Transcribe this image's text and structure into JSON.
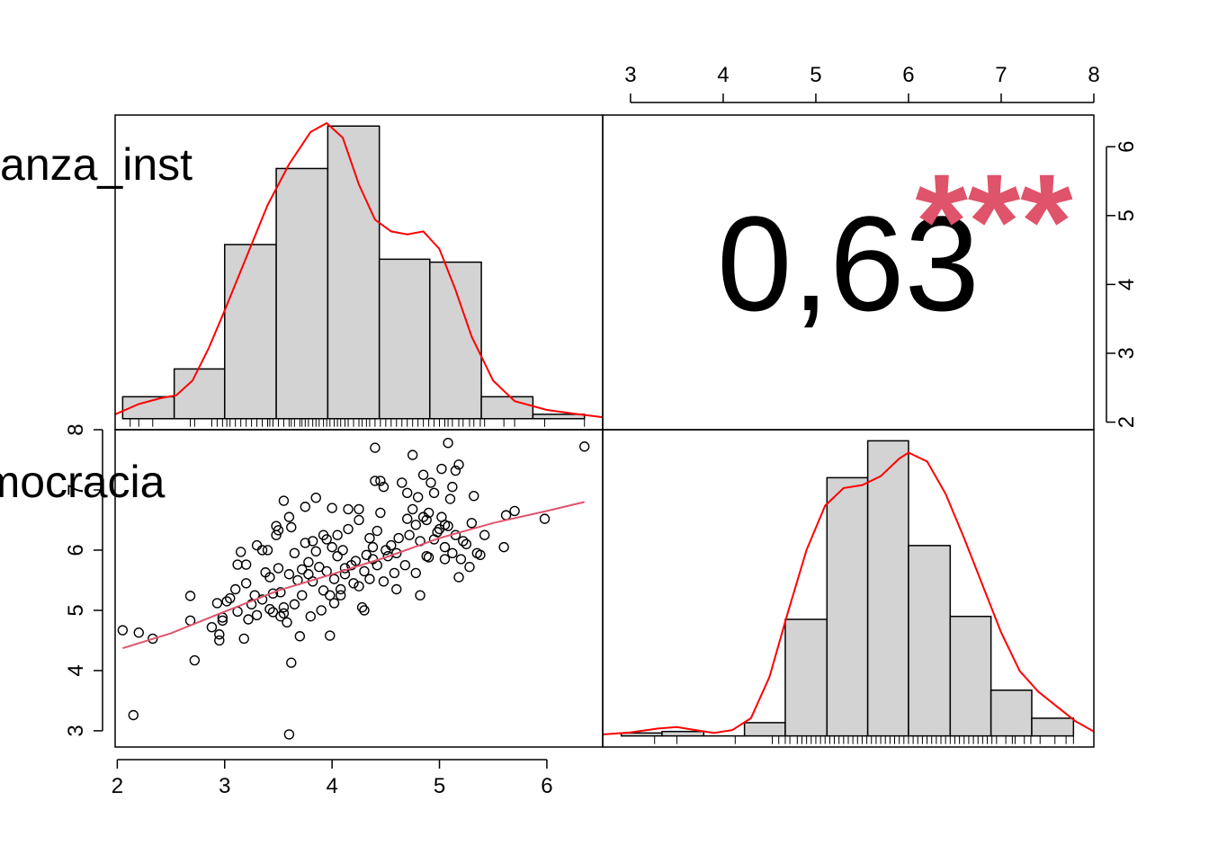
{
  "chart_data": {
    "type": "scatter",
    "variables": [
      "sub_confianza_inst",
      "sub_democracia"
    ],
    "correlation": {
      "value_label": "0,63",
      "stars": "***",
      "color": "#DF536B"
    },
    "colors": {
      "hist_fill": "#D3D3D3",
      "density": "#FF0000",
      "fit_line": "#DF536B",
      "points": "#000000"
    },
    "axes": {
      "x1": {
        "range": [
          1.98,
          6.52
        ],
        "ticks": [
          2,
          3,
          4,
          5,
          6
        ],
        "tick_labels": [
          "2",
          "3",
          "4",
          "5",
          "6"
        ],
        "position": "bottom"
      },
      "x2": {
        "range": [
          2.7,
          8.0
        ],
        "ticks": [
          3,
          4,
          5,
          6,
          7,
          8
        ],
        "tick_labels": [
          "3",
          "4",
          "5",
          "6",
          "7",
          "8"
        ],
        "position": "top"
      },
      "y1": {
        "range": [
          1.89,
          6.46
        ],
        "ticks": [
          2,
          3,
          4,
          5,
          6
        ],
        "tick_labels": [
          "2",
          "3",
          "4",
          "5",
          "6"
        ],
        "position": "right"
      },
      "y2": {
        "range": [
          2.73,
          8.0
        ],
        "ticks": [
          3,
          4,
          5,
          6,
          7,
          8
        ],
        "tick_labels": [
          "3",
          "4",
          "5",
          "6",
          "7",
          "8"
        ],
        "position": "left"
      }
    },
    "hist_confianza": {
      "breaks": [
        2.05,
        2.53,
        3.0,
        3.48,
        3.96,
        4.44,
        4.91,
        5.39,
        5.87,
        6.35
      ],
      "heights": [
        0.075,
        0.17,
        0.595,
        0.855,
        1.0,
        0.545,
        0.535,
        0.075,
        0.015
      ]
    },
    "hist_democracia": {
      "breaks": [
        2.9,
        3.34,
        3.79,
        4.23,
        4.67,
        5.12,
        5.56,
        6.0,
        6.45,
        6.89,
        7.33,
        7.78
      ],
      "heights": [
        0.01,
        0.015,
        0,
        0.045,
        0.395,
        0.875,
        1.0,
        0.645,
        0.405,
        0.155,
        0.06
      ]
    },
    "density_confianza": [
      [
        1.98,
        0.015
      ],
      [
        2.2,
        0.05
      ],
      [
        2.4,
        0.07
      ],
      [
        2.55,
        0.08
      ],
      [
        2.7,
        0.13
      ],
      [
        2.85,
        0.24
      ],
      [
        3.0,
        0.37
      ],
      [
        3.2,
        0.55
      ],
      [
        3.4,
        0.73
      ],
      [
        3.6,
        0.87
      ],
      [
        3.8,
        0.98
      ],
      [
        3.95,
        1.01
      ],
      [
        4.1,
        0.96
      ],
      [
        4.25,
        0.8
      ],
      [
        4.4,
        0.68
      ],
      [
        4.55,
        0.64
      ],
      [
        4.7,
        0.63
      ],
      [
        4.85,
        0.64
      ],
      [
        5.0,
        0.58
      ],
      [
        5.15,
        0.44
      ],
      [
        5.3,
        0.28
      ],
      [
        5.5,
        0.13
      ],
      [
        5.7,
        0.06
      ],
      [
        6.0,
        0.03
      ],
      [
        6.3,
        0.015
      ],
      [
        6.52,
        0.005
      ]
    ],
    "density_democracia": [
      [
        2.7,
        0.005
      ],
      [
        3.0,
        0.012
      ],
      [
        3.3,
        0.025
      ],
      [
        3.5,
        0.03
      ],
      [
        3.7,
        0.02
      ],
      [
        3.9,
        0.01
      ],
      [
        4.1,
        0.02
      ],
      [
        4.3,
        0.06
      ],
      [
        4.5,
        0.2
      ],
      [
        4.7,
        0.42
      ],
      [
        4.9,
        0.63
      ],
      [
        5.1,
        0.78
      ],
      [
        5.3,
        0.84
      ],
      [
        5.5,
        0.85
      ],
      [
        5.7,
        0.88
      ],
      [
        5.9,
        0.94
      ],
      [
        6.0,
        0.96
      ],
      [
        6.2,
        0.93
      ],
      [
        6.4,
        0.82
      ],
      [
        6.6,
        0.67
      ],
      [
        6.8,
        0.51
      ],
      [
        7.0,
        0.35
      ],
      [
        7.2,
        0.22
      ],
      [
        7.4,
        0.15
      ],
      [
        7.6,
        0.1
      ],
      [
        7.8,
        0.05
      ],
      [
        8.0,
        0.015
      ]
    ],
    "loess_fit": [
      [
        2.05,
        4.37
      ],
      [
        2.5,
        4.62
      ],
      [
        3.0,
        4.98
      ],
      [
        3.5,
        5.33
      ],
      [
        4.0,
        5.6
      ],
      [
        4.5,
        5.88
      ],
      [
        5.0,
        6.2
      ],
      [
        5.5,
        6.45
      ],
      [
        6.0,
        6.65
      ],
      [
        6.35,
        6.8
      ]
    ],
    "points": [
      [
        2.05,
        4.67
      ],
      [
        2.15,
        3.26
      ],
      [
        2.2,
        4.63
      ],
      [
        2.33,
        4.53
      ],
      [
        2.68,
        5.24
      ],
      [
        2.68,
        4.83
      ],
      [
        2.72,
        4.17
      ],
      [
        2.88,
        4.72
      ],
      [
        2.93,
        5.12
      ],
      [
        2.95,
        4.5
      ],
      [
        2.95,
        4.6
      ],
      [
        2.98,
        4.88
      ],
      [
        2.98,
        4.83
      ],
      [
        3.02,
        5.15
      ],
      [
        3.05,
        5.2
      ],
      [
        3.1,
        5.35
      ],
      [
        3.12,
        5.76
      ],
      [
        3.12,
        4.98
      ],
      [
        3.15,
        5.97
      ],
      [
        3.18,
        4.53
      ],
      [
        3.2,
        5.76
      ],
      [
        3.2,
        5.45
      ],
      [
        3.22,
        4.85
      ],
      [
        3.25,
        5.1
      ],
      [
        3.28,
        5.25
      ],
      [
        3.3,
        6.08
      ],
      [
        3.3,
        4.92
      ],
      [
        3.35,
        6.0
      ],
      [
        3.35,
        5.18
      ],
      [
        3.38,
        5.63
      ],
      [
        3.4,
        6.0
      ],
      [
        3.42,
        5.55
      ],
      [
        3.42,
        5.02
      ],
      [
        3.45,
        4.97
      ],
      [
        3.45,
        5.28
      ],
      [
        3.48,
        6.25
      ],
      [
        3.48,
        6.4
      ],
      [
        3.5,
        6.33
      ],
      [
        3.5,
        5.7
      ],
      [
        3.52,
        5.3
      ],
      [
        3.52,
        4.9
      ],
      [
        3.55,
        6.82
      ],
      [
        3.55,
        5.05
      ],
      [
        3.55,
        4.95
      ],
      [
        3.58,
        4.8
      ],
      [
        3.6,
        5.6
      ],
      [
        3.6,
        6.55
      ],
      [
        3.62,
        6.38
      ],
      [
        3.62,
        4.13
      ],
      [
        3.6,
        2.94
      ],
      [
        3.65,
        5.95
      ],
      [
        3.65,
        5.1
      ],
      [
        3.68,
        5.5
      ],
      [
        3.7,
        4.57
      ],
      [
        3.72,
        5.25
      ],
      [
        3.72,
        5.68
      ],
      [
        3.75,
        6.72
      ],
      [
        3.75,
        6.12
      ],
      [
        3.78,
        5.8
      ],
      [
        3.78,
        5.6
      ],
      [
        3.8,
        4.9
      ],
      [
        3.82,
        5.48
      ],
      [
        3.82,
        6.15
      ],
      [
        3.85,
        6.87
      ],
      [
        3.85,
        5.98
      ],
      [
        3.88,
        5.72
      ],
      [
        3.9,
        5.0
      ],
      [
        3.92,
        5.33
      ],
      [
        3.92,
        6.25
      ],
      [
        3.95,
        6.18
      ],
      [
        3.95,
        5.65
      ],
      [
        3.98,
        4.58
      ],
      [
        3.98,
        5.25
      ],
      [
        4.0,
        6.7
      ],
      [
        4.0,
        6.05
      ],
      [
        4.02,
        5.52
      ],
      [
        4.02,
        5.12
      ],
      [
        4.05,
        6.25
      ],
      [
        4.05,
        5.9
      ],
      [
        4.08,
        5.25
      ],
      [
        4.08,
        5.35
      ],
      [
        4.1,
        6.0
      ],
      [
        4.12,
        5.7
      ],
      [
        4.12,
        5.6
      ],
      [
        4.15,
        6.68
      ],
      [
        4.15,
        6.35
      ],
      [
        4.18,
        5.75
      ],
      [
        4.2,
        5.45
      ],
      [
        4.22,
        5.82
      ],
      [
        4.25,
        6.68
      ],
      [
        4.25,
        6.5
      ],
      [
        4.25,
        5.4
      ],
      [
        4.28,
        5.05
      ],
      [
        4.3,
        5.0
      ],
      [
        4.3,
        5.65
      ],
      [
        4.32,
        5.92
      ],
      [
        4.35,
        6.2
      ],
      [
        4.35,
        5.52
      ],
      [
        4.38,
        6.05
      ],
      [
        4.38,
        5.85
      ],
      [
        4.4,
        7.7
      ],
      [
        4.4,
        7.15
      ],
      [
        4.42,
        6.32
      ],
      [
        4.42,
        5.75
      ],
      [
        4.45,
        7.15
      ],
      [
        4.45,
        6.62
      ],
      [
        4.48,
        7.05
      ],
      [
        4.48,
        5.48
      ],
      [
        4.5,
        6.0
      ],
      [
        4.52,
        5.9
      ],
      [
        4.55,
        6.08
      ],
      [
        4.58,
        5.62
      ],
      [
        4.6,
        5.35
      ],
      [
        4.6,
        5.95
      ],
      [
        4.62,
        6.2
      ],
      [
        4.65,
        7.12
      ],
      [
        4.68,
        5.75
      ],
      [
        4.7,
        6.52
      ],
      [
        4.7,
        6.95
      ],
      [
        4.72,
        6.25
      ],
      [
        4.75,
        7.58
      ],
      [
        4.75,
        6.68
      ],
      [
        4.78,
        6.42
      ],
      [
        4.78,
        5.62
      ],
      [
        4.8,
        6.88
      ],
      [
        4.82,
        6.15
      ],
      [
        4.82,
        5.25
      ],
      [
        4.85,
        7.25
      ],
      [
        4.85,
        6.55
      ],
      [
        4.88,
        5.9
      ],
      [
        4.88,
        6.5
      ],
      [
        4.9,
        6.62
      ],
      [
        4.9,
        5.88
      ],
      [
        4.92,
        7.12
      ],
      [
        4.95,
        6.95
      ],
      [
        4.95,
        6.18
      ],
      [
        4.98,
        6.3
      ],
      [
        5.0,
        6.35
      ],
      [
        5.02,
        6.55
      ],
      [
        5.02,
        7.35
      ],
      [
        5.05,
        6.05
      ],
      [
        5.05,
        5.85
      ],
      [
        5.05,
        6.42
      ],
      [
        5.08,
        7.78
      ],
      [
        5.08,
        6.4
      ],
      [
        5.1,
        6.85
      ],
      [
        5.12,
        7.05
      ],
      [
        5.12,
        5.95
      ],
      [
        5.15,
        6.25
      ],
      [
        5.15,
        7.32
      ],
      [
        5.18,
        7.42
      ],
      [
        5.18,
        5.55
      ],
      [
        5.2,
        5.85
      ],
      [
        5.22,
        6.15
      ],
      [
        5.25,
        6.1
      ],
      [
        5.28,
        5.72
      ],
      [
        5.3,
        6.45
      ],
      [
        5.32,
        6.9
      ],
      [
        5.35,
        5.95
      ],
      [
        5.38,
        5.92
      ],
      [
        5.42,
        6.25
      ],
      [
        5.6,
        6.05
      ],
      [
        5.62,
        6.58
      ],
      [
        5.7,
        6.65
      ],
      [
        5.98,
        6.52
      ],
      [
        6.35,
        7.72
      ]
    ],
    "rug_confianza": [
      2.12,
      2.2,
      2.33,
      2.68,
      2.72,
      2.88,
      2.93,
      2.98,
      3.02,
      3.05,
      3.1,
      3.15,
      3.2,
      3.25,
      3.3,
      3.35,
      3.4,
      3.42,
      3.45,
      3.5,
      3.55,
      3.6,
      3.62,
      3.65,
      3.7,
      3.72,
      3.75,
      3.78,
      3.82,
      3.85,
      3.88,
      3.92,
      3.95,
      3.98,
      4.02,
      4.05,
      4.08,
      4.12,
      4.15,
      4.2,
      4.25,
      4.28,
      4.32,
      4.35,
      4.4,
      4.45,
      4.5,
      4.55,
      4.6,
      4.65,
      4.7,
      4.75,
      4.8,
      4.85,
      4.9,
      4.95,
      5.0,
      5.05,
      5.08,
      5.12,
      5.18,
      5.22,
      5.28,
      5.32,
      5.38,
      5.42,
      5.6,
      5.7,
      5.98,
      6.35
    ],
    "rug_democracia": [
      3.26,
      3.5,
      4.13,
      4.53,
      4.6,
      4.67,
      4.72,
      4.8,
      4.85,
      4.9,
      4.95,
      5.0,
      5.05,
      5.1,
      5.15,
      5.2,
      5.25,
      5.3,
      5.35,
      5.4,
      5.45,
      5.5,
      5.55,
      5.6,
      5.65,
      5.7,
      5.75,
      5.8,
      5.85,
      5.9,
      5.95,
      6.0,
      6.05,
      6.1,
      6.15,
      6.2,
      6.25,
      6.3,
      6.35,
      6.4,
      6.45,
      6.5,
      6.55,
      6.6,
      6.65,
      6.7,
      6.75,
      6.8,
      6.85,
      6.9,
      6.95,
      7.05,
      7.12,
      7.15,
      7.25,
      7.32,
      7.42,
      7.58,
      7.7,
      7.78
    ]
  }
}
